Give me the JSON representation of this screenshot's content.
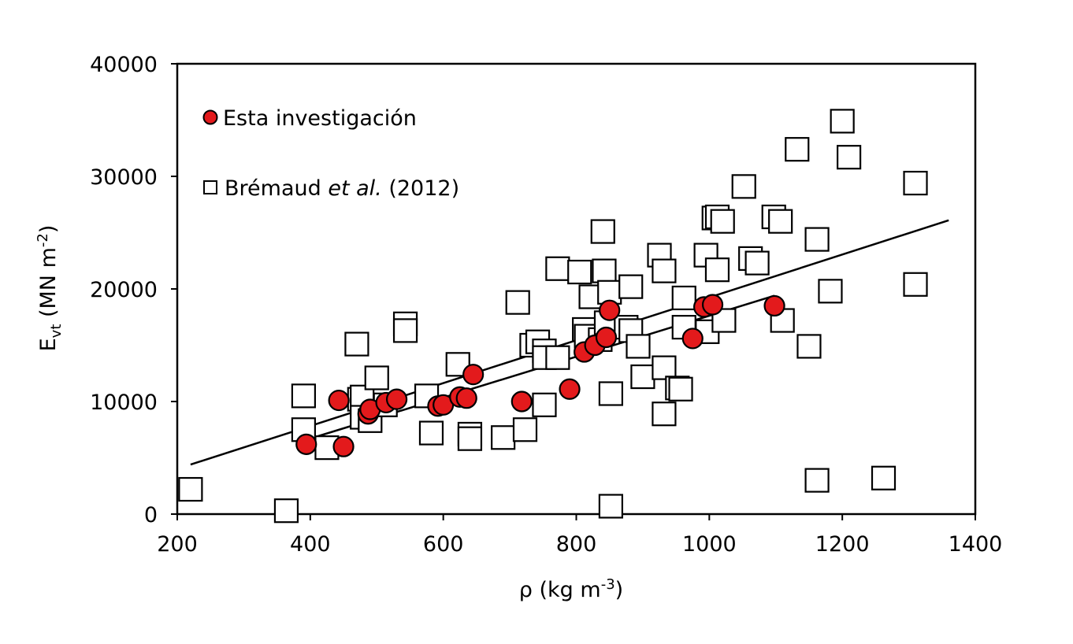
{
  "chart_data": {
    "type": "scatter",
    "xlabel": {
      "main": "ρ  (kg m",
      "sup": "-3",
      "tail": ")"
    },
    "ylabel": {
      "main": "E",
      "sub": "vt",
      "mid": "  (MN m",
      "sup": "-2",
      "tail": ")"
    },
    "xlim": [
      200,
      1400
    ],
    "ylim": [
      0,
      40000
    ],
    "xticks": [
      "200",
      "400",
      "600",
      "800",
      "1000",
      "1200",
      "1400"
    ],
    "yticks": [
      "0",
      "10000",
      "20000",
      "30000",
      "40000"
    ],
    "grid": false,
    "legend_position": "top-left",
    "series": [
      {
        "name": "Esta investigación",
        "marker": "circle",
        "color": "#e31a1c",
        "points": [
          [
            394,
            6200
          ],
          [
            450,
            6000
          ],
          [
            443,
            10100
          ],
          [
            487,
            8900
          ],
          [
            490,
            9300
          ],
          [
            514,
            9900
          ],
          [
            530,
            10200
          ],
          [
            592,
            9600
          ],
          [
            600,
            9700
          ],
          [
            625,
            10400
          ],
          [
            635,
            10300
          ],
          [
            645,
            12400
          ],
          [
            718,
            10000
          ],
          [
            790,
            11100
          ],
          [
            812,
            14400
          ],
          [
            828,
            15000
          ],
          [
            845,
            15700
          ],
          [
            850,
            18100
          ],
          [
            975,
            15600
          ],
          [
            992,
            18400
          ],
          [
            1005,
            18600
          ],
          [
            1098,
            18500
          ]
        ]
      },
      {
        "name": "Brémaud et al. (2012)",
        "marker": "square",
        "color": "#ffffff",
        "points": [
          [
            220,
            2200
          ],
          [
            364,
            300
          ],
          [
            390,
            10500
          ],
          [
            390,
            7500
          ],
          [
            425,
            5900
          ],
          [
            470,
            15100
          ],
          [
            474,
            10200
          ],
          [
            478,
            10400
          ],
          [
            478,
            8600
          ],
          [
            490,
            8300
          ],
          [
            500,
            12100
          ],
          [
            513,
            9700
          ],
          [
            543,
            16900
          ],
          [
            543,
            16300
          ],
          [
            575,
            10500
          ],
          [
            582,
            7200
          ],
          [
            622,
            13300
          ],
          [
            640,
            7100
          ],
          [
            640,
            6700
          ],
          [
            690,
            6800
          ],
          [
            712,
            18800
          ],
          [
            723,
            7500
          ],
          [
            733,
            15000
          ],
          [
            742,
            15300
          ],
          [
            752,
            9700
          ],
          [
            752,
            14500
          ],
          [
            752,
            13900
          ],
          [
            772,
            21800
          ],
          [
            772,
            13900
          ],
          [
            805,
            21500
          ],
          [
            812,
            16400
          ],
          [
            815,
            15800
          ],
          [
            822,
            19300
          ],
          [
            836,
            15500
          ],
          [
            840,
            25100
          ],
          [
            842,
            21600
          ],
          [
            845,
            17000
          ],
          [
            850,
            19700
          ],
          [
            852,
            700
          ],
          [
            852,
            10700
          ],
          [
            875,
            16600
          ],
          [
            882,
            20200
          ],
          [
            882,
            16300
          ],
          [
            893,
            14900
          ],
          [
            900,
            12200
          ],
          [
            925,
            23000
          ],
          [
            932,
            21600
          ],
          [
            932,
            13000
          ],
          [
            932,
            8900
          ],
          [
            952,
            11200
          ],
          [
            957,
            11100
          ],
          [
            962,
            19200
          ],
          [
            962,
            16600
          ],
          [
            995,
            23000
          ],
          [
            997,
            16200
          ],
          [
            1007,
            26300
          ],
          [
            1012,
            26400
          ],
          [
            1012,
            21700
          ],
          [
            1020,
            26000
          ],
          [
            1022,
            17200
          ],
          [
            1052,
            29100
          ],
          [
            1062,
            22700
          ],
          [
            1072,
            22300
          ],
          [
            1097,
            26400
          ],
          [
            1107,
            26000
          ],
          [
            1110,
            17200
          ],
          [
            1132,
            32400
          ],
          [
            1150,
            14900
          ],
          [
            1162,
            24400
          ],
          [
            1162,
            3000
          ],
          [
            1182,
            19800
          ],
          [
            1200,
            34900
          ],
          [
            1210,
            31700
          ],
          [
            1262,
            3200
          ],
          [
            1310,
            29400
          ],
          [
            1310,
            20400
          ]
        ]
      }
    ],
    "trendlines": [
      {
        "series": "Brémaud et al. (2012)",
        "x": [
          220,
          1360
        ],
        "y": [
          4400,
          26100
        ]
      },
      {
        "series": "Esta investigación",
        "x": [
          394,
          1098
        ],
        "y": [
          6600,
          19400
        ]
      }
    ],
    "legend": [
      {
        "marker": "circle",
        "text": "Esta investigación"
      },
      {
        "marker": "square",
        "text_parts": [
          {
            "t": "Brémaud "
          },
          {
            "t": "et al.",
            "italic": true
          },
          {
            "t": " (2012)"
          }
        ]
      }
    ]
  }
}
